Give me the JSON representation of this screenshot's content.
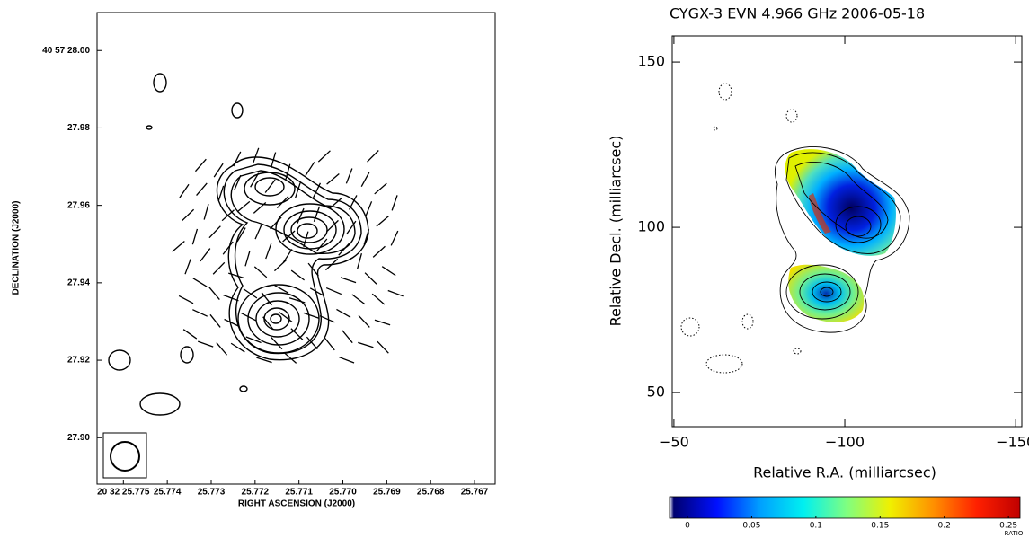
{
  "chart_data": [
    {
      "type": "contour",
      "xlabel": "RIGHT ASCENSION (J2000)",
      "ylabel": "DECLINATION (J2000)",
      "xlim": [
        25.7756,
        25.76653
      ],
      "ylim": [
        27.888,
        28.0098
      ],
      "xticks": [
        {
          "value": 25.775,
          "label": "20 32 25.775"
        },
        25.774,
        25.773,
        25.772,
        25.771,
        {
          "value": 25.77,
          "label": "25.770"
        },
        25.769,
        25.768,
        25.767
      ],
      "yticks": [
        {
          "value": 28.0,
          "label": "40 57 28.00"
        },
        27.98,
        27.96,
        27.94,
        27.92,
        {
          "value": 27.9,
          "label": "27.90"
        }
      ]
    },
    {
      "type": "contour",
      "title": "CYGX-3   EVN   4.966 GHz   2006-05-18",
      "xlabel": "Relative R.A. (milliarcsec)",
      "ylabel": "Relative Decl. (milliarcsec)",
      "xlim": [
        -49.5,
        -151.8
      ],
      "ylim": [
        39.7,
        157.9
      ],
      "xticks": [
        {
          "value": -50,
          "label": "−50"
        },
        {
          "value": -100,
          "label": "−100"
        },
        {
          "value": -150,
          "label": "−150"
        }
      ],
      "yticks": [
        50,
        100,
        150
      ],
      "colorbar": {
        "label": "RATIO",
        "clim": [
          -0.014,
          0.259
        ],
        "ticks": [
          0,
          0.05,
          0.1,
          0.15,
          0.2,
          0.25
        ],
        "colormap": [
          "#ffffff",
          "#000070",
          "#0010ff",
          "#00a0ff",
          "#00f0f0",
          "#80ff80",
          "#f0f000",
          "#ff9000",
          "#ff2000",
          "#c00000"
        ]
      }
    }
  ]
}
